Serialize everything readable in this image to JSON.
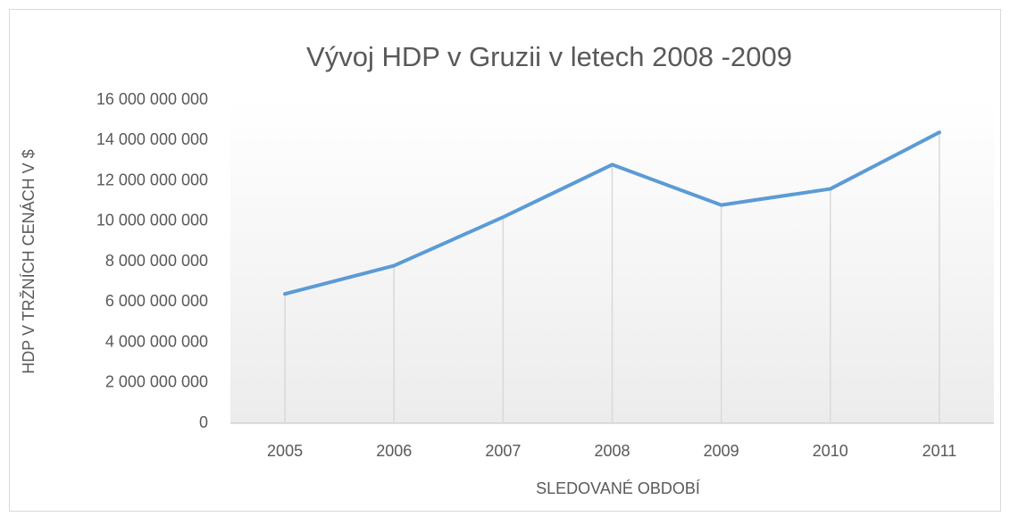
{
  "chart_data": {
    "type": "line",
    "title": "Vývoj HDP v Gruzii v letech 2008 -2009",
    "x_label": "SLEDOVANÉ OBDOBÍ",
    "y_label": "HDP V TRŽNÍCH CENÁCH V $",
    "categories": [
      "2005",
      "2006",
      "2007",
      "2008",
      "2009",
      "2010",
      "2011"
    ],
    "series": [
      {
        "name": "HDP",
        "color": "#5b9bd5",
        "values": [
          6400000000,
          7800000000,
          10200000000,
          12800000000,
          10800000000,
          11600000000,
          14400000000
        ]
      }
    ],
    "ylim": [
      0,
      16000000000
    ],
    "yticks": [
      0,
      {
        "value": 2000000000,
        "label": "2 000 000 000"
      },
      {
        "value": 4000000000,
        "label": "4 000 000 000"
      },
      {
        "value": 6000000000,
        "label": "6 000 000 000"
      },
      {
        "value": 8000000000,
        "label": "8 000 000 000"
      },
      {
        "value": 10000000000,
        "label": "10 000 000 000"
      },
      {
        "value": 12000000000,
        "label": "12 000 000 000"
      },
      {
        "value": 14000000000,
        "label": "14 000 000 000"
      },
      {
        "value": 16000000000,
        "label": "16 000 000 000"
      }
    ],
    "grid": false,
    "drop_lines": true
  }
}
